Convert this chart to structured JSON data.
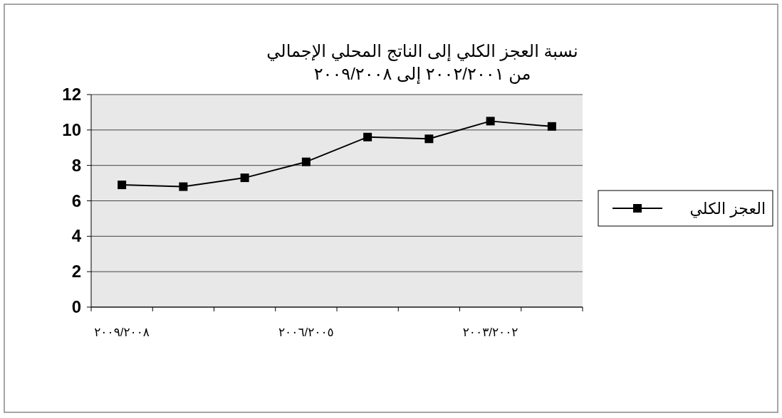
{
  "chart_data": {
    "type": "line",
    "title": "نسبة العجز الكلي إلى الناتج المحلي الإجمالي",
    "subtitle": "من ٢٠٠٢/٢٠٠١ إلى ٢٠٠٩/٢٠٠٨",
    "categories": [
      "٢٠٠٩/٢٠٠٨",
      null,
      null,
      "٢٠٠٦/٢٠٠٥",
      null,
      null,
      "٢٠٠٣/٢٠٠٢",
      null
    ],
    "series": [
      {
        "name": "العجز الكلي",
        "color": "#000000",
        "values": [
          6.9,
          6.8,
          7.3,
          8.2,
          9.6,
          9.5,
          10.5,
          10.2
        ]
      }
    ],
    "ylim": [
      0,
      12
    ],
    "yticks": [
      0,
      2,
      4,
      6,
      8,
      10,
      12
    ],
    "grid": "y",
    "legend": "right",
    "marker": "square",
    "line_style": "solid"
  }
}
